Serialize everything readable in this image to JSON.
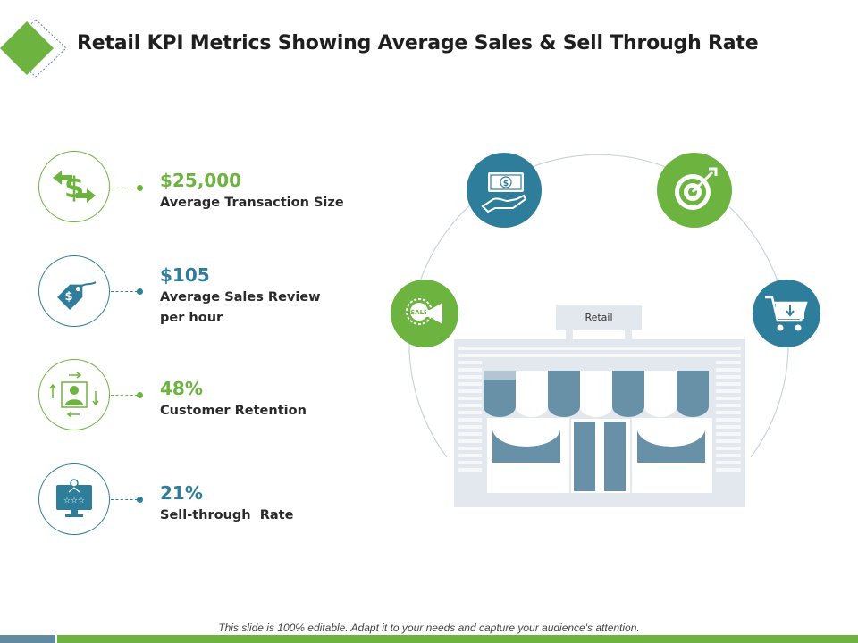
{
  "title": "Retail KPI Metrics Showing Average Sales & Sell Through Rate",
  "colors": {
    "green": "#6db33f",
    "blue": "#2e7d9a",
    "store_light": "#e3e8ee",
    "store_dark": "#6891a7"
  },
  "kpis": [
    {
      "value": "$25,000",
      "label": "Average Transaction Size",
      "color": "green",
      "icon": "dollar-exchange-icon"
    },
    {
      "value": "$105",
      "label": "Average Sales Review per hour",
      "color": "blue",
      "icon": "price-tag-icon"
    },
    {
      "value": "48%",
      "label": "Customer Retention",
      "color": "green",
      "icon": "customer-retention-icon"
    },
    {
      "value": "21%",
      "label": "Sell-through  Rate",
      "color": "blue",
      "icon": "rating-monitor-icon"
    }
  ],
  "store": {
    "sign": "Retail",
    "icon": "storefront-icon"
  },
  "feature_icons": [
    "sale-megaphone-icon",
    "cash-in-hand-icon",
    "target-icon",
    "shopping-cart-icon"
  ],
  "footer": {
    "text": "This slide is 100% editable. Adapt it to your needs and capture your audience's attention."
  }
}
